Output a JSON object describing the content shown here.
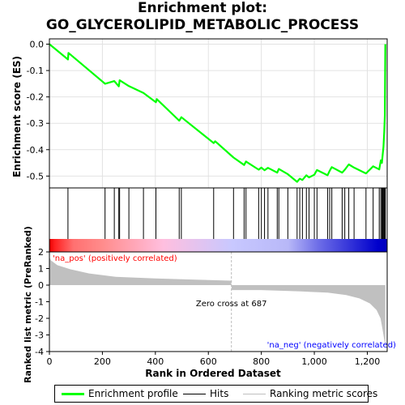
{
  "title_line1": "Enrichment plot:",
  "title_line2": "GO_GLYCEROLIPID_METABOLIC_PROCESS",
  "colors": {
    "es_line": "#00ff00",
    "hits": "#000000",
    "metric_fill": "#c0c0c0",
    "pos_label": "#ff0000",
    "neg_label": "#0000ff",
    "zero_cross_line": "#bdbdbd"
  },
  "chart_data": [
    {
      "type": "line",
      "name": "enrichment-profile",
      "ylabel": "Enrichment score (ES)",
      "xlim": [
        0,
        1275
      ],
      "ylim": [
        -0.545,
        0.02
      ],
      "yticks": [
        0.0,
        -0.1,
        -0.2,
        -0.3,
        -0.4,
        -0.5
      ],
      "ytick_labels": [
        "0.0",
        "-0.1",
        "-0.2",
        "-0.3",
        "-0.4",
        "-0.5"
      ],
      "grid": true,
      "x": [
        0,
        70,
        72,
        210,
        245,
        262,
        265,
        300,
        355,
        402,
        405,
        490,
        498,
        620,
        626,
        695,
        735,
        742,
        790,
        800,
        812,
        825,
        860,
        866,
        900,
        935,
        945,
        955,
        970,
        980,
        1000,
        1010,
        1050,
        1058,
        1066,
        1105,
        1115,
        1130,
        1150,
        1195,
        1222,
        1245,
        1251,
        1255,
        1258,
        1261,
        1264,
        1266,
        1268
      ],
      "y": [
        0.0,
        -0.058,
        -0.033,
        -0.15,
        -0.14,
        -0.16,
        -0.137,
        -0.159,
        -0.185,
        -0.22,
        -0.208,
        -0.29,
        -0.277,
        -0.375,
        -0.368,
        -0.43,
        -0.458,
        -0.445,
        -0.476,
        -0.468,
        -0.478,
        -0.469,
        -0.487,
        -0.473,
        -0.493,
        -0.522,
        -0.51,
        -0.515,
        -0.497,
        -0.505,
        -0.495,
        -0.477,
        -0.497,
        -0.48,
        -0.466,
        -0.487,
        -0.476,
        -0.456,
        -0.468,
        -0.49,
        -0.463,
        -0.475,
        -0.44,
        -0.45,
        -0.42,
        -0.39,
        -0.33,
        -0.27,
        0.0
      ]
    },
    {
      "type": "scatter",
      "name": "hits",
      "x": [
        70,
        210,
        245,
        262,
        265,
        300,
        355,
        402,
        490,
        498,
        620,
        695,
        735,
        742,
        790,
        800,
        812,
        825,
        860,
        866,
        900,
        935,
        945,
        955,
        970,
        980,
        1000,
        1010,
        1050,
        1058,
        1066,
        1105,
        1115,
        1130,
        1150,
        1195,
        1222,
        1245,
        1251,
        1255,
        1258,
        1261,
        1264,
        1266,
        1268
      ]
    },
    {
      "type": "area",
      "name": "ranking-metric-scores",
      "xlabel": "Rank in Ordered Dataset",
      "ylabel": "Ranked list metric (PreRanked)",
      "xlim": [
        0,
        1275
      ],
      "ylim": [
        -4,
        2
      ],
      "yticks": [
        2,
        1,
        0,
        -1,
        -2,
        -3,
        -4
      ],
      "ytick_labels": [
        "2",
        "1",
        "0",
        "-1",
        "-2",
        "-3",
        "-4"
      ],
      "xticks": [
        0,
        200,
        400,
        600,
        800,
        1000,
        1200
      ],
      "xtick_labels": [
        "0",
        "200",
        "400",
        "600",
        "800",
        "1,000",
        "1,200"
      ],
      "x": [
        0,
        5,
        30,
        80,
        150,
        250,
        400,
        550,
        686,
        688,
        800,
        950,
        1050,
        1120,
        1170,
        1210,
        1235,
        1250,
        1258,
        1264,
        1268
      ],
      "y": [
        1.7,
        1.5,
        1.2,
        0.95,
        0.7,
        0.5,
        0.4,
        0.33,
        0.27,
        -0.3,
        -0.3,
        -0.38,
        -0.45,
        -0.6,
        -0.8,
        -1.1,
        -1.5,
        -2.0,
        -2.7,
        -3.3,
        -3.7
      ],
      "annotations": {
        "pos_label": "'na_pos' (positively correlated)",
        "neg_label": "'na_neg' (negatively correlated)",
        "zero_cross": "Zero cross at 687",
        "zero_cross_x": 687
      }
    }
  ],
  "heatmap_bar": {
    "stops": [
      {
        "x": 0,
        "color": "#e80000"
      },
      {
        "x": 20,
        "color": "#ff2020"
      },
      {
        "x": 90,
        "color": "#ff7070"
      },
      {
        "x": 200,
        "color": "#ff8c8c"
      },
      {
        "x": 430,
        "color": "#ffbfdf"
      },
      {
        "x": 690,
        "color": "#c8c8ff"
      },
      {
        "x": 900,
        "color": "#b8b8f8"
      },
      {
        "x": 1010,
        "color": "#7070e8"
      },
      {
        "x": 1240,
        "color": "#0000cc"
      },
      {
        "x": 1275,
        "color": "#0000bb"
      }
    ]
  },
  "legend": {
    "es": "Enrichment profile",
    "hits": "Hits",
    "metric": "Ranking metric scores"
  }
}
